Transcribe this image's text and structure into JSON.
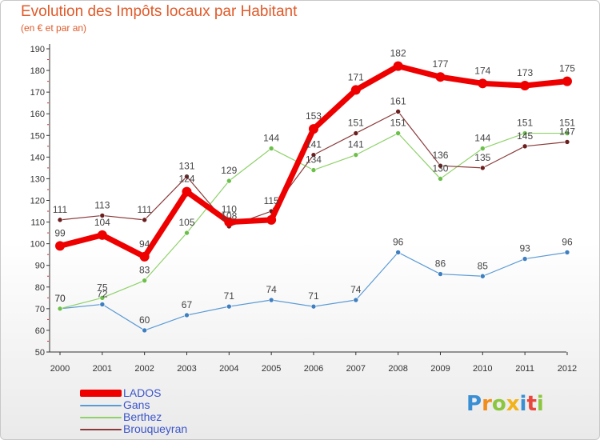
{
  "title": "Evolution des Impôts locaux par Habitant",
  "subtitle": "(en € et par an)",
  "logo": {
    "text": "Proxiti",
    "letters": [
      {
        "ch": "P",
        "color": "#3a8fd4"
      },
      {
        "ch": "r",
        "color": "#f28c1a"
      },
      {
        "ch": "o",
        "color": "#8cc63f"
      },
      {
        "ch": "x",
        "color": "#f2b21a"
      },
      {
        "ch": "i",
        "color": "#3a8fd4"
      },
      {
        "ch": "t",
        "color": "#e8463c"
      },
      {
        "ch": "i",
        "color": "#8cc63f"
      }
    ]
  },
  "chart_data": {
    "type": "line",
    "title": "Evolution des Impôts locaux par Habitant",
    "subtitle": "(en € et par an)",
    "x": [
      "2000",
      "2001",
      "2002",
      "2003",
      "2004",
      "2005",
      "2006",
      "2007",
      "2008",
      "2009",
      "2010",
      "2011",
      "2012"
    ],
    "ylim": [
      50,
      190
    ],
    "yticks": [
      50,
      60,
      70,
      80,
      90,
      100,
      110,
      120,
      130,
      140,
      150,
      160,
      170,
      180,
      190
    ],
    "grid": false,
    "legend_position": "bottom-left",
    "series": [
      {
        "name": "Gans",
        "color": "#5b9bd5",
        "dot": "#3f7fc0",
        "width": 1.2,
        "radius": 3,
        "values": [
          70,
          72,
          60,
          67,
          71,
          74,
          71,
          74,
          96,
          86,
          85,
          93,
          96
        ],
        "labels": [
          "70",
          "72",
          "60",
          "67",
          "71",
          "74",
          "71",
          "74",
          "96",
          "86",
          "85",
          "93",
          "96"
        ]
      },
      {
        "name": "Berthez",
        "color": "#8fd16a",
        "dot": "#6cc04a",
        "width": 1.2,
        "radius": 3,
        "values": [
          70,
          75,
          83,
          105,
          129,
          144,
          134,
          141,
          151,
          130,
          144,
          151,
          151
        ],
        "labels": [
          "70",
          "75",
          "83",
          "105",
          "129",
          "144",
          "134",
          "141",
          "151",
          "130",
          "144",
          "151",
          "151"
        ]
      },
      {
        "name": "Brouqueyran",
        "color": "#8a3a3a",
        "dot": "#6a1e1e",
        "width": 1.2,
        "radius": 3,
        "values": [
          111,
          113,
          111,
          131,
          108,
          115,
          141,
          151,
          161,
          136,
          135,
          145,
          147
        ],
        "labels": [
          "111",
          "113",
          "111",
          "131",
          "108",
          "115",
          "141",
          "151",
          "161",
          "136",
          "135",
          "145",
          "147"
        ]
      },
      {
        "name": "LADOS",
        "color": "#ee0000",
        "dot": "#ee0000",
        "width": 7,
        "radius": 6,
        "values": [
          99,
          104,
          94,
          124,
          110,
          111,
          153,
          171,
          182,
          177,
          174,
          173,
          175
        ],
        "labels": [
          "99",
          "104",
          "94",
          "124",
          "110",
          "",
          "153",
          "171",
          "182",
          "177",
          "174",
          "173",
          "175"
        ]
      }
    ],
    "legend": [
      {
        "name": "LADOS",
        "color": "#ee0000",
        "thickness": 9
      },
      {
        "name": "Gans",
        "color": "#5b9bd5",
        "thickness": 2
      },
      {
        "name": "Berthez",
        "color": "#8fd16a",
        "thickness": 2
      },
      {
        "name": "Brouqueyran",
        "color": "#8a3a3a",
        "thickness": 2
      }
    ]
  }
}
